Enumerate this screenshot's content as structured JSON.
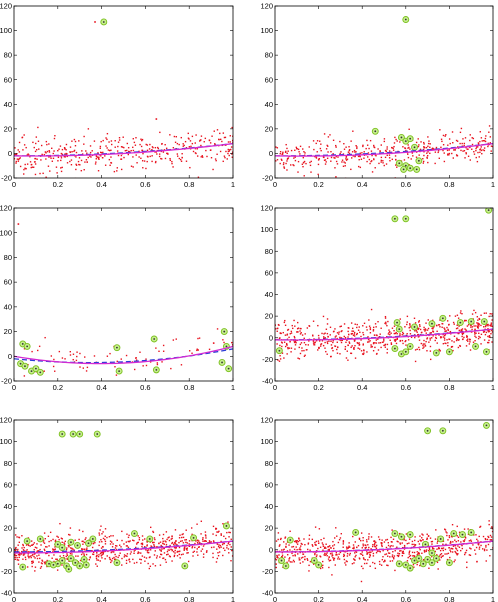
{
  "chart_data": [
    {
      "type": "scatter",
      "title": "",
      "xlabel": "",
      "ylabel": "",
      "xlim": [
        0,
        1
      ],
      "ylim": [
        -20,
        120
      ],
      "xticks": [
        "0",
        "0.2",
        "0.4",
        "0.6",
        "0.8",
        "1"
      ],
      "yticks": [
        "-20",
        "0",
        "20",
        "40",
        "60",
        "80",
        "100",
        "120"
      ],
      "grid": false,
      "series": [
        {
          "role": "data",
          "color": "#e8121e",
          "n": 420,
          "slope": 10,
          "offset": -2,
          "noise": 7
        },
        {
          "role": "outliers",
          "color": "#e8121e",
          "points": [
            [
              0.37,
              107
            ],
            [
              0.4,
              107
            ],
            [
              0.65,
              28
            ]
          ]
        },
        {
          "role": "flagged",
          "color": "#7bbf1e",
          "points": [
            [
              0.41,
              107
            ]
          ]
        },
        {
          "role": "fit-true",
          "style": "dashed",
          "color": "#2b3bd6",
          "coef": [
            -2,
            0,
            10
          ]
        },
        {
          "role": "fit-estimated",
          "style": "solid",
          "color": "#d42ad2",
          "coef": [
            -2,
            -2,
            12
          ]
        }
      ]
    },
    {
      "type": "scatter",
      "title": "",
      "xlabel": "",
      "ylabel": "",
      "xlim": [
        0,
        1
      ],
      "ylim": [
        -20,
        120
      ],
      "xticks": [
        "0",
        "0.2",
        "0.4",
        "0.6",
        "0.8",
        "1"
      ],
      "yticks": [
        "-20",
        "0",
        "20",
        "40",
        "60",
        "80",
        "100",
        "120"
      ],
      "grid": false,
      "series": [
        {
          "role": "data",
          "color": "#e8121e",
          "n": 420,
          "slope": 10,
          "offset": -2,
          "noise": 7
        },
        {
          "role": "outliers",
          "color": "#e8121e",
          "points": []
        },
        {
          "role": "flagged",
          "color": "#7bbf1e",
          "points": [
            [
              0.6,
              109
            ],
            [
              0.46,
              18
            ],
            [
              0.58,
              13
            ],
            [
              0.6,
              10
            ],
            [
              0.62,
              12
            ],
            [
              0.57,
              -8
            ],
            [
              0.6,
              -10
            ],
            [
              0.62,
              -12
            ],
            [
              0.65,
              -13
            ],
            [
              0.59,
              -13
            ],
            [
              0.66,
              -6
            ],
            [
              0.64,
              5
            ]
          ]
        },
        {
          "role": "fit-true",
          "style": "dashed",
          "color": "#2b3bd6",
          "coef": [
            -2,
            0,
            10
          ]
        },
        {
          "role": "fit-estimated",
          "style": "solid",
          "color": "#d42ad2",
          "coef": [
            -2,
            -3,
            13
          ]
        }
      ]
    },
    {
      "type": "scatter",
      "title": "",
      "xlabel": "",
      "ylabel": "",
      "xlim": [
        0,
        1
      ],
      "ylim": [
        -20,
        120
      ],
      "xticks": [
        "0",
        "0.2",
        "0.4",
        "0.6",
        "0.8",
        "1"
      ],
      "yticks": [
        "-20",
        "0",
        "20",
        "40",
        "60",
        "80",
        "100",
        "120"
      ],
      "grid": false,
      "series": [
        {
          "role": "data",
          "color": "#e8121e",
          "n": 80,
          "slope": 10,
          "offset": -2,
          "noise": 7
        },
        {
          "role": "outliers",
          "color": "#e8121e",
          "points": [
            [
              0.02,
              107
            ]
          ]
        },
        {
          "role": "flagged",
          "color": "#7bbf1e",
          "points": [
            [
              0.04,
              10
            ],
            [
              0.06,
              8
            ],
            [
              0.03,
              -6
            ],
            [
              0.05,
              -8
            ],
            [
              0.08,
              -12
            ],
            [
              0.1,
              -10
            ],
            [
              0.12,
              -13
            ],
            [
              0.48,
              -12
            ],
            [
              0.47,
              7
            ],
            [
              0.64,
              14
            ],
            [
              0.65,
              -11
            ],
            [
              0.96,
              20
            ],
            [
              0.95,
              -5
            ],
            [
              0.98,
              -10
            ],
            [
              0.97,
              8
            ]
          ]
        },
        {
          "role": "fit-true",
          "style": "dashed",
          "color": "#2b3bd6",
          "coef": [
            -2,
            -18,
            26
          ]
        },
        {
          "role": "fit-estimated",
          "style": "solid",
          "color": "#d42ad2",
          "coef": [
            0,
            -30,
            38
          ]
        }
      ]
    },
    {
      "type": "scatter",
      "title": "",
      "xlabel": "",
      "ylabel": "",
      "xlim": [
        0,
        1
      ],
      "ylim": [
        -40,
        120
      ],
      "xticks": [
        "0",
        "0.2",
        "0.4",
        "0.6",
        "0.8",
        "1"
      ],
      "yticks": [
        "-40",
        "-20",
        "0",
        "20",
        "40",
        "60",
        "80",
        "100",
        "120"
      ],
      "grid": false,
      "series": [
        {
          "role": "data",
          "color": "#e8121e",
          "n": 700,
          "slope": 10,
          "offset": -2,
          "noise": 8
        },
        {
          "role": "outliers",
          "color": "#e8121e",
          "points": []
        },
        {
          "role": "flagged",
          "color": "#7bbf1e",
          "points": [
            [
              0.55,
              110
            ],
            [
              0.6,
              110
            ],
            [
              0.98,
              118
            ],
            [
              0.56,
              14
            ],
            [
              0.58,
              -15
            ],
            [
              0.6,
              -13
            ],
            [
              0.62,
              -8
            ],
            [
              0.55,
              -10
            ],
            [
              0.57,
              8
            ],
            [
              0.72,
              13
            ],
            [
              0.74,
              -14
            ],
            [
              0.77,
              18
            ],
            [
              0.8,
              -13
            ],
            [
              0.85,
              14
            ],
            [
              0.9,
              15
            ],
            [
              0.92,
              -8
            ],
            [
              0.96,
              15
            ],
            [
              0.97,
              -13
            ],
            [
              0.02,
              -12
            ],
            [
              0.64,
              10
            ]
          ]
        },
        {
          "role": "fit-true",
          "style": "dashed",
          "color": "#2b3bd6",
          "coef": [
            -2,
            0,
            10
          ]
        },
        {
          "role": "fit-estimated",
          "style": "solid",
          "color": "#d42ad2",
          "coef": [
            -2,
            -2,
            12
          ]
        }
      ]
    },
    {
      "type": "scatter",
      "title": "",
      "xlabel": "",
      "ylabel": "",
      "xlim": [
        0,
        1
      ],
      "ylim": [
        -40,
        120
      ],
      "xticks": [
        "0",
        "0.2",
        "0.4",
        "0.6",
        "0.8",
        "1"
      ],
      "yticks": [
        "-40",
        "-20",
        "0",
        "20",
        "40",
        "60",
        "80",
        "100",
        "120"
      ],
      "grid": false,
      "series": [
        {
          "role": "data",
          "color": "#e8121e",
          "n": 700,
          "slope": 10,
          "offset": -2,
          "noise": 8
        },
        {
          "role": "outliers",
          "color": "#e8121e",
          "points": []
        },
        {
          "role": "flagged",
          "color": "#7bbf1e",
          "points": [
            [
              0.22,
              107
            ],
            [
              0.27,
              107
            ],
            [
              0.3,
              107
            ],
            [
              0.38,
              107
            ],
            [
              0.06,
              8
            ],
            [
              0.12,
              10
            ],
            [
              0.2,
              5
            ],
            [
              0.22,
              -10
            ],
            [
              0.24,
              -15
            ],
            [
              0.26,
              -8
            ],
            [
              0.28,
              -12
            ],
            [
              0.3,
              -15
            ],
            [
              0.32,
              -9
            ],
            [
              0.34,
              6
            ],
            [
              0.36,
              10
            ],
            [
              0.2,
              -13
            ],
            [
              0.25,
              -18
            ],
            [
              0.29,
              4
            ],
            [
              0.33,
              -14
            ],
            [
              0.22,
              2
            ],
            [
              0.26,
              7
            ],
            [
              0.47,
              -12
            ],
            [
              0.55,
              15
            ],
            [
              0.62,
              10
            ],
            [
              0.78,
              -15
            ],
            [
              0.82,
              11
            ],
            [
              0.97,
              22
            ],
            [
              0.04,
              -16
            ],
            [
              0.16,
              -13
            ],
            [
              0.18,
              -14
            ]
          ]
        },
        {
          "role": "fit-true",
          "style": "dashed",
          "color": "#2b3bd6",
          "coef": [
            -2,
            0,
            10
          ]
        },
        {
          "role": "fit-estimated",
          "style": "solid",
          "color": "#d42ad2",
          "coef": [
            -3,
            0,
            11
          ]
        }
      ]
    },
    {
      "type": "scatter",
      "title": "",
      "xlabel": "",
      "ylabel": "",
      "xlim": [
        0,
        1
      ],
      "ylim": [
        -40,
        120
      ],
      "xticks": [
        "0",
        "0.2",
        "0.4",
        "0.6",
        "0.8",
        "1"
      ],
      "yticks": [
        "-40",
        "-20",
        "0",
        "20",
        "40",
        "60",
        "80",
        "100",
        "120"
      ],
      "grid": false,
      "series": [
        {
          "role": "data",
          "color": "#e8121e",
          "n": 700,
          "slope": 10,
          "offset": -2,
          "noise": 8
        },
        {
          "role": "outliers",
          "color": "#e8121e",
          "points": []
        },
        {
          "role": "flagged",
          "color": "#7bbf1e",
          "points": [
            [
              0.7,
              110
            ],
            [
              0.77,
              110
            ],
            [
              0.97,
              115
            ],
            [
              0.07,
              9
            ],
            [
              0.05,
              -15
            ],
            [
              0.18,
              -10
            ],
            [
              0.37,
              16
            ],
            [
              0.55,
              15
            ],
            [
              0.57,
              -13
            ],
            [
              0.6,
              -14
            ],
            [
              0.62,
              14
            ],
            [
              0.64,
              -10
            ],
            [
              0.66,
              -8
            ],
            [
              0.68,
              -13
            ],
            [
              0.7,
              -9
            ],
            [
              0.72,
              -12
            ],
            [
              0.74,
              -8
            ],
            [
              0.76,
              10
            ],
            [
              0.62,
              -17
            ],
            [
              0.58,
              12
            ],
            [
              0.8,
              -12
            ],
            [
              0.82,
              15
            ],
            [
              0.86,
              14
            ],
            [
              0.9,
              16
            ],
            [
              0.72,
              -3
            ],
            [
              0.69,
              5
            ],
            [
              0.03,
              -10
            ],
            [
              0.2,
              -14
            ]
          ]
        },
        {
          "role": "fit-true",
          "style": "dashed",
          "color": "#2b3bd6",
          "coef": [
            -2,
            0,
            10
          ]
        },
        {
          "role": "fit-estimated",
          "style": "solid",
          "color": "#d42ad2",
          "coef": [
            -2,
            -1,
            11
          ]
        }
      ]
    }
  ]
}
